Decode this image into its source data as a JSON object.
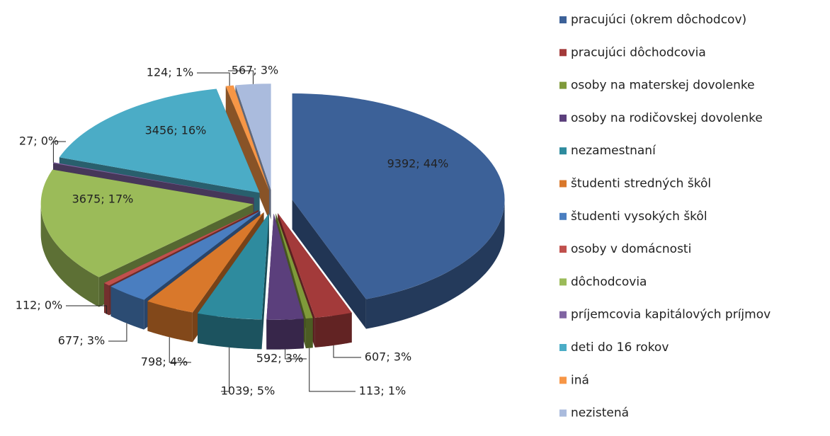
{
  "chart_data": {
    "type": "pie",
    "categories": [
      "pracujúci (okrem dôchodcov)",
      "pracujúci dôchodcovia",
      "osoby na materskej dovolenke",
      "osoby na rodičovskej dovolenke",
      "nezamestnaní",
      "študenti stredných škôl",
      "študenti vysokých škôl",
      "osoby v domácnosti",
      "dôchodcovia",
      "príjemcovia kapitálových príjmov",
      "deti do 16 rokov",
      "iná",
      "nezistená"
    ],
    "values": [
      9392,
      607,
      113,
      592,
      1039,
      798,
      677,
      112,
      3675,
      27,
      3456,
      124,
      567
    ],
    "value_labels": [
      "9392; 44%",
      "607; 3%",
      "113; 1%",
      "592; 3%",
      "1039; 5%",
      "798; 4%",
      "677; 3%",
      "112; 0%",
      "3675; 17%",
      "27; 0%",
      "3456; 16%",
      "124; 1%",
      "567; 3%"
    ],
    "colors": [
      "#3c6198",
      "#a33a3a",
      "#7f9a3a",
      "#5b3f7c",
      "#2e8b9e",
      "#d9782b",
      "#4a7ec0",
      "#c0504d",
      "#9bbb59",
      "#8064a2",
      "#4bacc6",
      "#f79646",
      "#aabbdd"
    ],
    "legend": "right"
  }
}
